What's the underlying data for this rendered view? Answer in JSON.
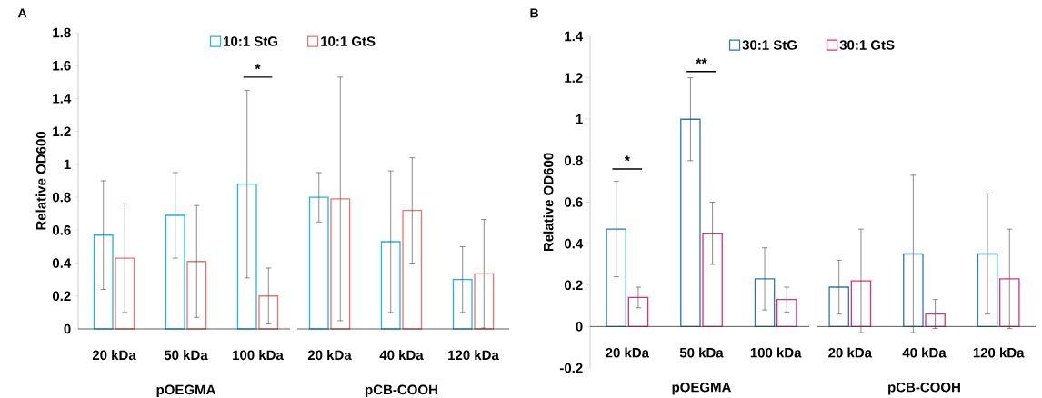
{
  "chart_data": [
    {
      "type": "bar",
      "title": "A",
      "ylabel": "Relative OD600",
      "categories": [
        "20 kDa",
        "50 kDa",
        "100 kDa",
        "20 kDa",
        "40 kDa",
        "120 kDa"
      ],
      "series": [
        {
          "name": "10:1 StG",
          "color": "#1fb4e8",
          "values": [
            0.57,
            0.69,
            0.88,
            0.8,
            0.53,
            0.3
          ],
          "errors": [
            0.33,
            0.26,
            0.57,
            0.15,
            0.43,
            0.2
          ]
        },
        {
          "name": "10:1 GtS",
          "color": "#f0706a",
          "values": [
            0.43,
            0.41,
            0.2,
            0.79,
            0.72,
            0.335
          ],
          "errors": [
            0.33,
            0.34,
            0.17,
            0.74,
            0.32,
            0.33
          ]
        }
      ],
      "ylim": [
        0,
        1.8
      ],
      "yticks": [
        0,
        0.2,
        0.4,
        0.6,
        0.8,
        1,
        1.2,
        1.4,
        1.6,
        1.8
      ],
      "legend": "top",
      "annotations": [
        "pOEGMA",
        "pCB-COOH",
        "*"
      ]
    },
    {
      "type": "bar",
      "title": "B",
      "ylabel": "Relative OD600",
      "categories": [
        "20 kDa",
        "50 kDa",
        "100 kDa",
        "20 kDa",
        "40 kDa",
        "120 kDa"
      ],
      "series": [
        {
          "name": "30:1 StG",
          "color": "#2878c0",
          "values": [
            0.47,
            1.0,
            0.23,
            0.19,
            0.35,
            0.35
          ],
          "errors": [
            0.23,
            0.2,
            0.15,
            0.13,
            0.38,
            0.29
          ]
        },
        {
          "name": "30:1 GtS",
          "color": "#e0307a",
          "values": [
            0.14,
            0.45,
            0.13,
            0.22,
            0.06,
            0.23
          ],
          "errors": [
            0.05,
            0.15,
            0.06,
            0.25,
            0.07,
            0.24
          ]
        }
      ],
      "ylim": [
        -0.2,
        1.4
      ],
      "yticks": [
        -0.2,
        0,
        0.2,
        0.4,
        0.6,
        0.8,
        1,
        1.2,
        1.4
      ],
      "legend": "top",
      "annotations": [
        "pOEGMA",
        "pCB-COOH",
        "*",
        "**"
      ]
    }
  ]
}
